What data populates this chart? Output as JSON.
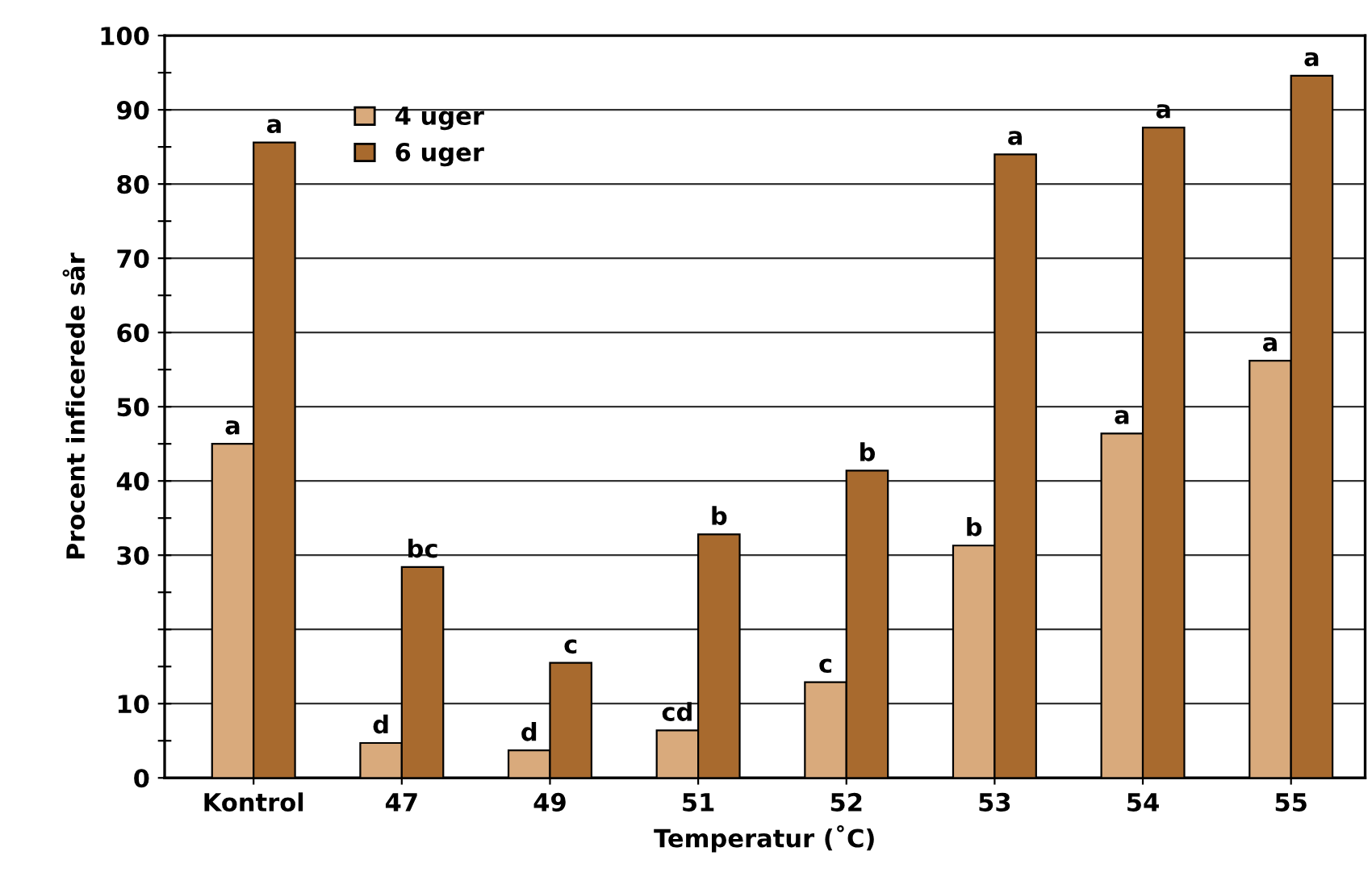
{
  "chart_data": {
    "type": "bar",
    "xlabel": "Temperatur (˚C)",
    "ylabel": "Procent inficerede sår",
    "categories": [
      "Kontrol",
      "47",
      "49",
      "51",
      "52",
      "53",
      "54",
      "55"
    ],
    "series": [
      {
        "name": "4 uger",
        "color": "#d9aa7c",
        "values": [
          45,
          4.7,
          3.7,
          6.4,
          12.9,
          31.3,
          46.4,
          56.2
        ],
        "value_labels": [
          "a",
          "d",
          "d",
          "cd",
          "c",
          "b",
          "a",
          "a"
        ]
      },
      {
        "name": "6 uger",
        "color": "#a86a2e",
        "values": [
          85.6,
          28.4,
          15.5,
          32.8,
          41.4,
          84,
          87.6,
          94.6
        ],
        "value_labels": [
          "a",
          "bc",
          "c",
          "b",
          "b",
          "a",
          "a",
          "a"
        ]
      }
    ],
    "ylim": [
      0,
      100
    ],
    "yticks": [
      0,
      {
        "value": 5,
        "label": null
      },
      10,
      {
        "value": 15,
        "label": null
      },
      {
        "value": 20,
        "label": null
      },
      {
        "value": 25,
        "label": null
      },
      30,
      {
        "value": 35,
        "label": null
      },
      40,
      {
        "value": 45,
        "label": null
      },
      50,
      {
        "value": 55,
        "label": null
      },
      60,
      {
        "value": 65,
        "label": null
      },
      70,
      {
        "value": 75,
        "label": null
      },
      80,
      {
        "value": 85,
        "label": null
      },
      90,
      {
        "value": 95,
        "label": null
      },
      100
    ],
    "grid": "y",
    "legend": "top left"
  }
}
